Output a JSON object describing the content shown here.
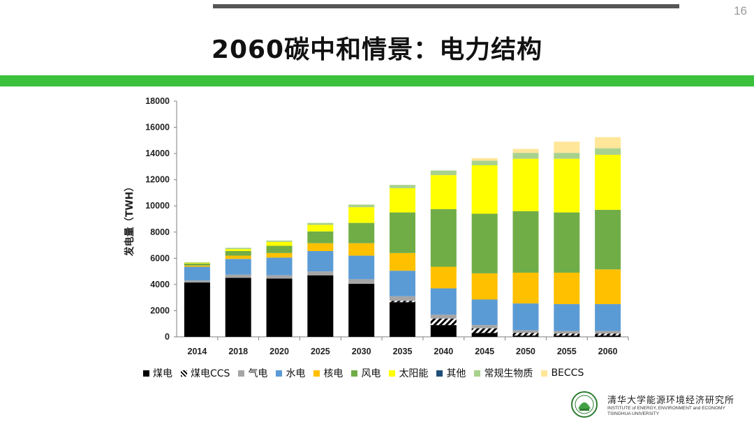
{
  "page": {
    "title": "2060碳中和情景：电力结构",
    "page_number": "16"
  },
  "institute": {
    "name_cn": "清华大学能源环境经济研究所",
    "name_en_1": "INSTITUTE of ENERGY, ENVIRONMENT and ECONOMY",
    "name_en_2": "TSINGHUA UNIVERSITY"
  },
  "colors": {
    "accent_green": "#3cc13c",
    "top_bar": "#555555"
  },
  "chart_data": {
    "type": "bar",
    "stacked": true,
    "title": "",
    "xlabel": "",
    "ylabel": "发电量（TWH）",
    "ylim": [
      0,
      18000
    ],
    "yticks": [
      0,
      2000,
      4000,
      6000,
      8000,
      10000,
      12000,
      14000,
      16000,
      18000
    ],
    "grid": false,
    "legend_position": "bottom",
    "categories": [
      "2014",
      "2018",
      "2020",
      "2025",
      "2030",
      "2035",
      "2040",
      "2045",
      "2050",
      "2055",
      "2060"
    ],
    "series": [
      {
        "name": "煤电",
        "color": "#000000",
        "pattern": "solid",
        "values": [
          4150,
          4500,
          4450,
          4700,
          4050,
          2650,
          900,
          300,
          100,
          100,
          100
        ]
      },
      {
        "name": "煤电CCS",
        "color": "#000000",
        "pattern": "hatch",
        "values": [
          0,
          0,
          0,
          0,
          0,
          100,
          500,
          350,
          200,
          150,
          150
        ]
      },
      {
        "name": "气电",
        "color": "#a6a6a6",
        "pattern": "solid",
        "values": [
          150,
          250,
          250,
          300,
          350,
          350,
          300,
          250,
          200,
          200,
          200
        ]
      },
      {
        "name": "水电",
        "color": "#5b9bd5",
        "pattern": "solid",
        "values": [
          1050,
          1200,
          1350,
          1550,
          1800,
          1950,
          2000,
          1950,
          2050,
          2050,
          2050
        ]
      },
      {
        "name": "核电",
        "color": "#ffc000",
        "pattern": "solid",
        "values": [
          100,
          250,
          350,
          600,
          950,
          1350,
          1650,
          2000,
          2350,
          2400,
          2650
        ]
      },
      {
        "name": "风电",
        "color": "#70ad47",
        "pattern": "solid",
        "values": [
          150,
          350,
          550,
          900,
          1550,
          3100,
          4400,
          4550,
          4700,
          4600,
          4550
        ]
      },
      {
        "name": "太阳能",
        "color": "#ffff00",
        "pattern": "solid",
        "values": [
          50,
          150,
          300,
          500,
          1200,
          1850,
          2600,
          3700,
          4000,
          4100,
          4200
        ]
      },
      {
        "name": "其他",
        "color": "#1f4e79",
        "pattern": "solid",
        "values": [
          0,
          0,
          0,
          0,
          0,
          0,
          0,
          0,
          0,
          0,
          0
        ]
      },
      {
        "name": "常规生物质",
        "color": "#a9d18e",
        "pattern": "solid",
        "values": [
          50,
          100,
          100,
          150,
          200,
          250,
          350,
          350,
          450,
          450,
          500
        ]
      },
      {
        "name": "BECCS",
        "color": "#ffe699",
        "pattern": "solid",
        "values": [
          0,
          0,
          0,
          0,
          0,
          0,
          0,
          200,
          300,
          850,
          850
        ]
      }
    ]
  }
}
